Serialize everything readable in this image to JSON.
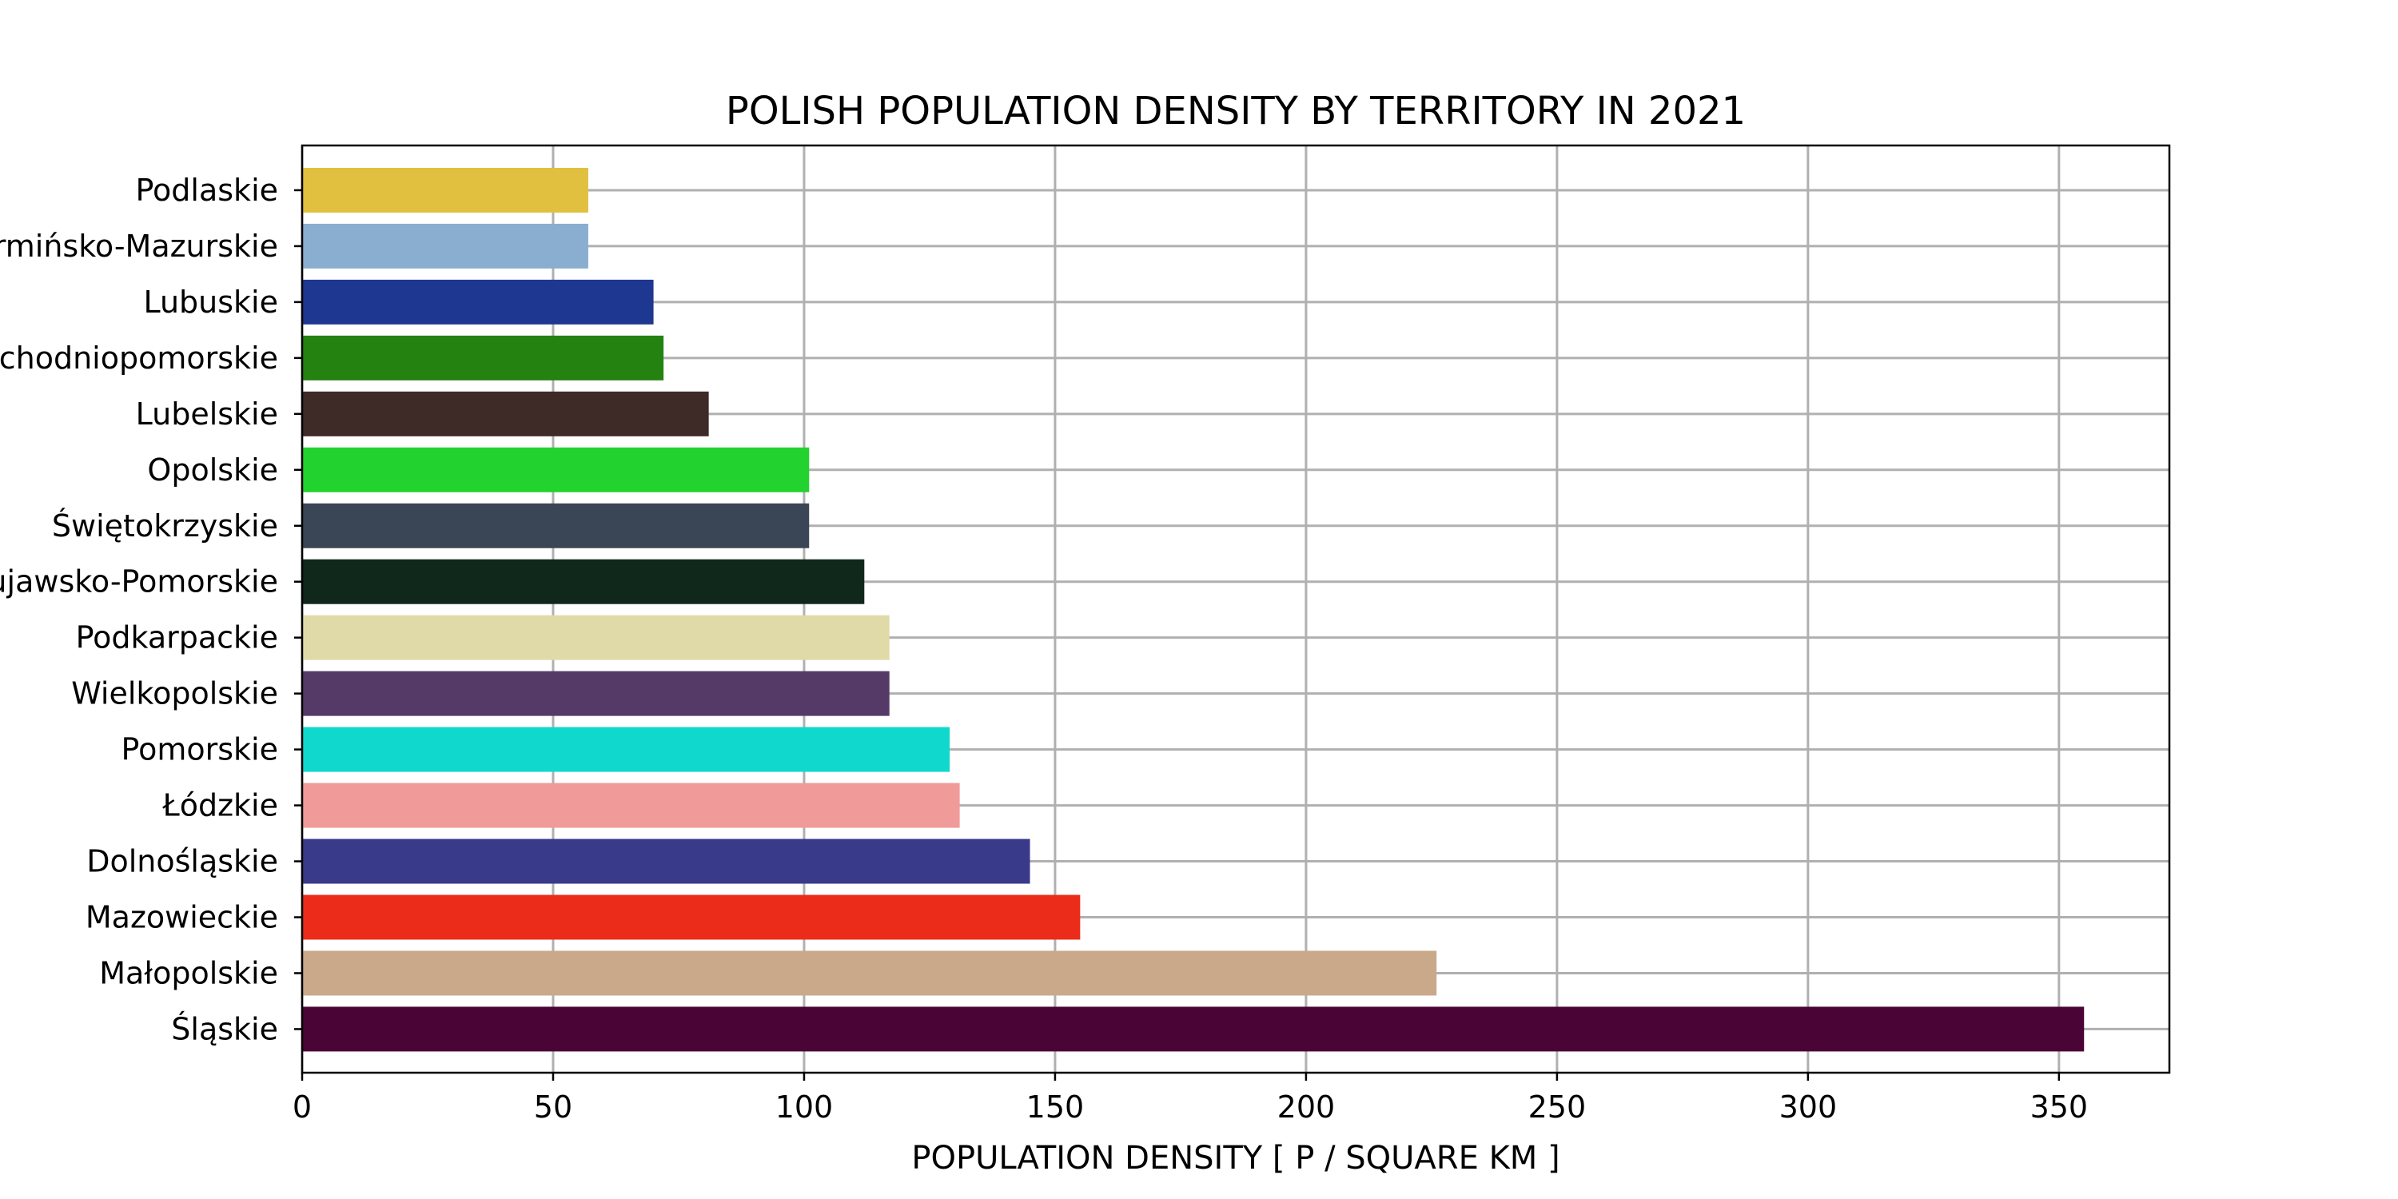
{
  "chart_data": {
    "type": "bar",
    "orientation": "horizontal",
    "title": "POLISH POPULATION DENSITY BY TERRITORY IN 2021",
    "xlabel": "POPULATION DENSITY [ P / SQUARE KM ]",
    "ylabel": "",
    "xlim": [
      0,
      372
    ],
    "xticks": [
      "0",
      "50",
      "100",
      "150",
      "200",
      "250",
      "300",
      "350"
    ],
    "grid": true,
    "categories": [
      "Śląskie",
      "Małopolskie",
      "Mazowieckie",
      "Dolnośląskie",
      "Łódzkie",
      "Pomorskie",
      "Wielkopolskie",
      "Podkarpackie",
      "Kujawsko-Pomorskie",
      "Świętokrzyskie",
      "Opolskie",
      "Lubelskie",
      "Zachodniopomorskie",
      "Lubuskie",
      "Warmińsko-Mazurskie",
      "Podlaskie"
    ],
    "values": [
      355,
      226,
      155,
      145,
      131,
      129,
      117,
      117,
      112,
      101,
      101,
      81,
      72,
      70,
      57,
      57
    ],
    "colors": [
      "#4a0436",
      "#c9a98a",
      "#ec2c1a",
      "#3a3a8a",
      "#f09a9a",
      "#11d8cc",
      "#553a68",
      "#e0daa8",
      "#10281c",
      "#3a4656",
      "#22d22e",
      "#3e2a26",
      "#238210",
      "#1e3790",
      "#8aaed0",
      "#e0c03e"
    ]
  }
}
